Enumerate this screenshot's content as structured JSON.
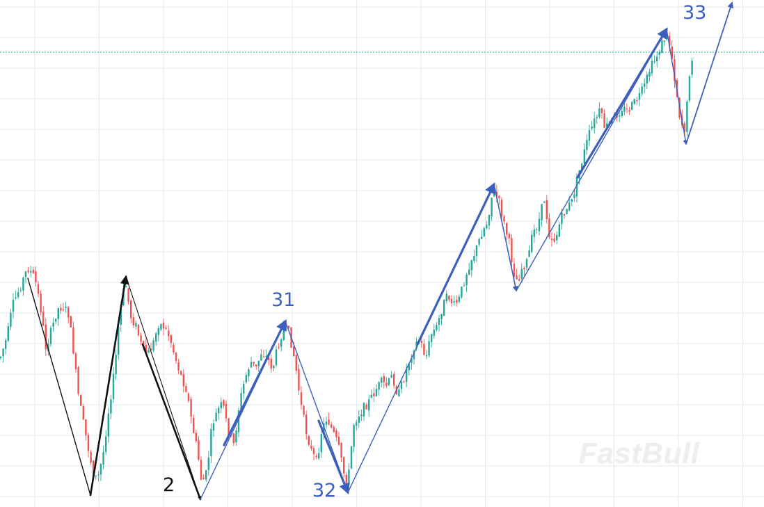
{
  "chart_data": {
    "type": "candlestick",
    "title": "",
    "xlabel": "",
    "ylabel": "",
    "grid": true,
    "colors": {
      "up": "#26a69a",
      "down": "#ef5350",
      "wave_count": "#3c5fbf",
      "early_wave": "#111111",
      "grid": "#e3e9ef",
      "dotted_level": "#26a69a"
    },
    "price_series": [
      [
        0,
        515
      ],
      [
        10,
        485
      ],
      [
        18,
        440
      ],
      [
        30,
        410
      ],
      [
        40,
        385
      ],
      [
        50,
        400
      ],
      [
        58,
        440
      ],
      [
        66,
        500
      ],
      [
        74,
        475
      ],
      [
        82,
        445
      ],
      [
        90,
        440
      ],
      [
        98,
        450
      ],
      [
        105,
        500
      ],
      [
        112,
        565
      ],
      [
        120,
        610
      ],
      [
        128,
        650
      ],
      [
        134,
        680
      ],
      [
        140,
        690
      ],
      [
        148,
        655
      ],
      [
        156,
        590
      ],
      [
        165,
        530
      ],
      [
        172,
        450
      ],
      [
        180,
        405
      ],
      [
        188,
        455
      ],
      [
        196,
        470
      ],
      [
        204,
        500
      ],
      [
        212,
        510
      ],
      [
        220,
        495
      ],
      [
        228,
        465
      ],
      [
        236,
        470
      ],
      [
        244,
        485
      ],
      [
        252,
        515
      ],
      [
        260,
        540
      ],
      [
        268,
        560
      ],
      [
        276,
        610
      ],
      [
        284,
        650
      ],
      [
        290,
        695
      ],
      [
        297,
        680
      ],
      [
        305,
        610
      ],
      [
        313,
        590
      ],
      [
        320,
        580
      ],
      [
        328,
        620
      ],
      [
        336,
        640
      ],
      [
        344,
        580
      ],
      [
        352,
        545
      ],
      [
        360,
        520
      ],
      [
        368,
        530
      ],
      [
        376,
        505
      ],
      [
        384,
        515
      ],
      [
        392,
        530
      ],
      [
        400,
        495
      ],
      [
        408,
        470
      ],
      [
        416,
        480
      ],
      [
        424,
        520
      ],
      [
        432,
        580
      ],
      [
        440,
        620
      ],
      [
        448,
        650
      ],
      [
        455,
        665
      ],
      [
        462,
        620
      ],
      [
        470,
        600
      ],
      [
        478,
        620
      ],
      [
        486,
        640
      ],
      [
        494,
        680
      ],
      [
        500,
        695
      ],
      [
        508,
        610
      ],
      [
        516,
        595
      ],
      [
        524,
        585
      ],
      [
        532,
        575
      ],
      [
        540,
        560
      ],
      [
        548,
        550
      ],
      [
        556,
        555
      ],
      [
        564,
        540
      ],
      [
        572,
        570
      ],
      [
        580,
        545
      ],
      [
        588,
        520
      ],
      [
        596,
        495
      ],
      [
        604,
        490
      ],
      [
        612,
        515
      ],
      [
        620,
        480
      ],
      [
        628,
        470
      ],
      [
        636,
        440
      ],
      [
        644,
        425
      ],
      [
        652,
        440
      ],
      [
        660,
        430
      ],
      [
        668,
        400
      ],
      [
        676,
        375
      ],
      [
        684,
        360
      ],
      [
        692,
        335
      ],
      [
        700,
        320
      ],
      [
        708,
        275
      ],
      [
        716,
        285
      ],
      [
        724,
        320
      ],
      [
        732,
        350
      ],
      [
        738,
        390
      ],
      [
        744,
        405
      ],
      [
        750,
        385
      ],
      [
        758,
        375
      ],
      [
        766,
        335
      ],
      [
        774,
        320
      ],
      [
        782,
        285
      ],
      [
        790,
        340
      ],
      [
        798,
        345
      ],
      [
        806,
        315
      ],
      [
        814,
        300
      ],
      [
        822,
        290
      ],
      [
        830,
        255
      ],
      [
        838,
        225
      ],
      [
        846,
        195
      ],
      [
        854,
        175
      ],
      [
        862,
        160
      ],
      [
        870,
        185
      ],
      [
        878,
        175
      ],
      [
        886,
        165
      ],
      [
        894,
        155
      ],
      [
        902,
        160
      ],
      [
        910,
        150
      ],
      [
        918,
        140
      ],
      [
        926,
        125
      ],
      [
        934,
        100
      ],
      [
        942,
        85
      ],
      [
        948,
        70
      ],
      [
        955,
        55
      ],
      [
        960,
        52
      ],
      [
        966,
        85
      ],
      [
        972,
        130
      ],
      [
        978,
        175
      ],
      [
        984,
        185
      ],
      [
        988,
        145
      ],
      [
        992,
        90
      ],
      [
        997,
        75
      ]
    ],
    "dotted_level": 75,
    "wave_lines": [
      {
        "color": "early_wave",
        "width": 1.4,
        "points": [
          [
            40,
            400
          ],
          [
            130,
            712
          ]
        ]
      },
      {
        "color": "early_wave",
        "width": 2.6,
        "points": [
          [
            130,
            712
          ],
          [
            181,
            398
          ]
        ],
        "arrow": true
      },
      {
        "color": "early_wave",
        "width": 1.1,
        "points": [
          [
            181,
            398
          ],
          [
            288,
            718
          ]
        ],
        "arrow": true
      },
      {
        "color": "early_wave",
        "width": 2.6,
        "points": [
          [
            205,
            495
          ],
          [
            288,
            718
          ]
        ]
      },
      {
        "color": "wave_count",
        "width": 1.4,
        "points": [
          [
            288,
            718
          ],
          [
            410,
            462
          ]
        ]
      },
      {
        "color": "wave_count",
        "width": 3.2,
        "points": [
          [
            322,
            640
          ],
          [
            410,
            462
          ]
        ],
        "arrow": true
      },
      {
        "color": "wave_count",
        "width": 1.4,
        "points": [
          [
            410,
            462
          ],
          [
            500,
            708
          ]
        ]
      },
      {
        "color": "wave_count",
        "width": 3.2,
        "points": [
          [
            458,
            605
          ],
          [
            500,
            708
          ]
        ],
        "arrow": true
      },
      {
        "color": "wave_count",
        "width": 1.4,
        "points": [
          [
            500,
            708
          ],
          [
            710,
            265
          ]
        ]
      },
      {
        "color": "wave_count",
        "width": 3.2,
        "points": [
          [
            600,
            495
          ],
          [
            710,
            265
          ]
        ],
        "arrow": true
      },
      {
        "color": "wave_count",
        "width": 1.6,
        "points": [
          [
            710,
            265
          ],
          [
            742,
            418
          ]
        ],
        "arrow": true
      },
      {
        "color": "wave_count",
        "width": 1.4,
        "points": [
          [
            742,
            418
          ],
          [
            958,
            42
          ]
        ]
      },
      {
        "color": "wave_count",
        "width": 3.2,
        "points": [
          [
            830,
            255
          ],
          [
            958,
            42
          ]
        ],
        "arrow": true
      },
      {
        "color": "wave_count",
        "width": 1.4,
        "points": [
          [
            958,
            42
          ],
          [
            986,
            207
          ]
        ],
        "arrow": true
      },
      {
        "color": "wave_count",
        "width": 1.8,
        "points": [
          [
            986,
            207
          ],
          [
            1052,
            4
          ]
        ],
        "arrow": true
      }
    ],
    "wave_labels": [
      {
        "text": "2",
        "color": "early_wave"
      },
      {
        "text": "31",
        "color": "wave_count"
      },
      {
        "text": "32",
        "color": "wave_count"
      },
      {
        "text": "33",
        "color": "wave_count"
      }
    ],
    "watermark": "FastBull"
  }
}
